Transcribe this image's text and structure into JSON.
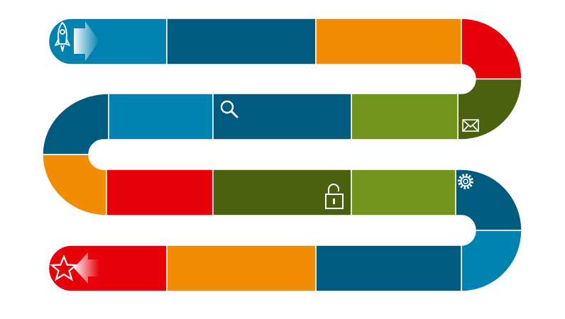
{
  "palette": {
    "blue": "#0082b0",
    "teal": "#005b7e",
    "orange": "#f28c00",
    "red": "#e8000b",
    "dark_green": "#4b610f",
    "green": "#71941a"
  },
  "path_segments": [
    {
      "color": "#0082b0",
      "icon": "rocket-icon"
    },
    {
      "color": "#005b7e",
      "icon": null
    },
    {
      "color": "#f28c00",
      "icon": null
    },
    {
      "color": "#e8000b",
      "icon": null
    },
    {
      "color": "#4b610f",
      "icon": "envelope-icon"
    },
    {
      "color": "#71941a",
      "icon": null
    },
    {
      "color": "#005b7e",
      "icon": "search-icon"
    },
    {
      "color": "#0082b0",
      "icon": null
    },
    {
      "color": "#005b7e",
      "icon": null
    },
    {
      "color": "#f28c00",
      "icon": null
    },
    {
      "color": "#e8000b",
      "icon": null
    },
    {
      "color": "#4b610f",
      "icon": "unlocked-padlock-icon"
    },
    {
      "color": "#71941a",
      "icon": null
    },
    {
      "color": "#005b7e",
      "icon": "gear-icon"
    },
    {
      "color": "#0082b0",
      "icon": null
    },
    {
      "color": "#005b7e",
      "icon": null
    },
    {
      "color": "#f28c00",
      "icon": null
    },
    {
      "color": "#e8000b",
      "icon": "star-icon"
    }
  ],
  "start_marker": {
    "icon": "rocket-icon",
    "arrow": "arrow-right-icon"
  },
  "end_marker": {
    "icon": "star-icon",
    "arrow": "arrow-left-icon"
  }
}
